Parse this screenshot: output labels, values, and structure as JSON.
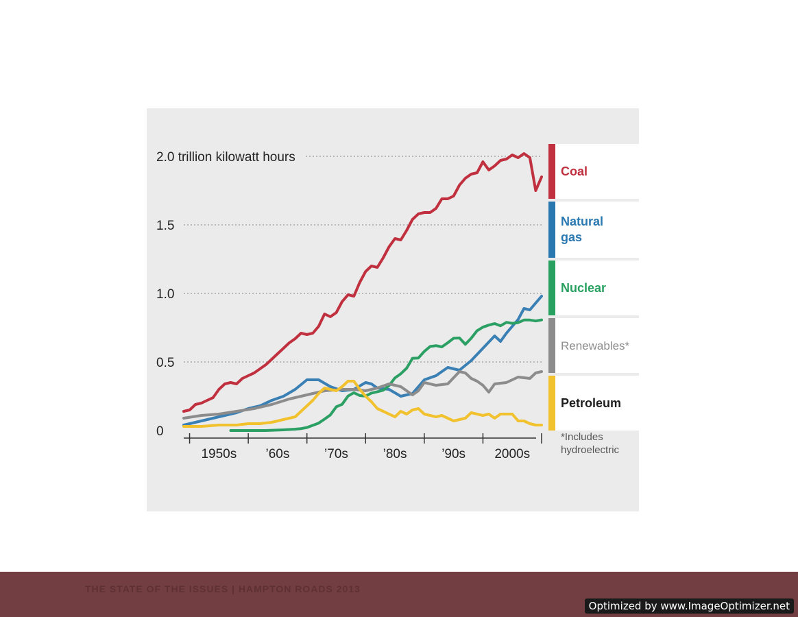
{
  "chart_data": {
    "type": "line",
    "ylabel_top": "2.0 trillion kilowatt hours",
    "y_ticks": [
      "0",
      "0.5",
      "1.0",
      "1.5"
    ],
    "x_ticks": [
      "1950s",
      "’60s",
      "’70s",
      "’80s",
      "’90s",
      "2000s"
    ],
    "ylim": [
      0,
      2.0
    ],
    "xlim": [
      1949,
      2010
    ],
    "grid": "horizontal dotted",
    "legend_position": "right",
    "footnote": "*Includes hydroelectric",
    "series": [
      {
        "name": "Coal",
        "color": "#c0303f",
        "x": [
          1949,
          1950,
          1951,
          1952,
          1953,
          1954,
          1955,
          1956,
          1957,
          1958,
          1959,
          1960,
          1961,
          1962,
          1963,
          1964,
          1965,
          1966,
          1967,
          1968,
          1969,
          1970,
          1971,
          1972,
          1973,
          1974,
          1975,
          1976,
          1977,
          1978,
          1979,
          1980,
          1981,
          1982,
          1983,
          1984,
          1985,
          1986,
          1987,
          1988,
          1989,
          1990,
          1991,
          1992,
          1993,
          1994,
          1995,
          1996,
          1997,
          1998,
          1999,
          2000,
          2001,
          2002,
          2003,
          2004,
          2005,
          2006,
          2007,
          2008,
          2009,
          2010
        ],
        "values": [
          0.14,
          0.15,
          0.19,
          0.2,
          0.22,
          0.24,
          0.3,
          0.34,
          0.35,
          0.34,
          0.38,
          0.4,
          0.42,
          0.45,
          0.48,
          0.52,
          0.56,
          0.6,
          0.64,
          0.67,
          0.71,
          0.7,
          0.71,
          0.76,
          0.85,
          0.83,
          0.86,
          0.94,
          0.99,
          0.98,
          1.08,
          1.16,
          1.2,
          1.19,
          1.26,
          1.34,
          1.4,
          1.39,
          1.46,
          1.54,
          1.58,
          1.59,
          1.59,
          1.62,
          1.69,
          1.69,
          1.71,
          1.79,
          1.84,
          1.87,
          1.88,
          1.96,
          1.9,
          1.93,
          1.97,
          1.98,
          2.01,
          1.99,
          2.02,
          1.99,
          1.75,
          1.85
        ]
      },
      {
        "name": "Natural gas",
        "color": "#3a80b5",
        "x": [
          1949,
          1950,
          1952,
          1954,
          1956,
          1958,
          1960,
          1962,
          1964,
          1966,
          1968,
          1970,
          1972,
          1974,
          1976,
          1978,
          1980,
          1981,
          1982,
          1984,
          1986,
          1988,
          1990,
          1992,
          1994,
          1996,
          1998,
          2000,
          2002,
          2003,
          2004,
          2006,
          2007,
          2008,
          2009,
          2010
        ],
        "values": [
          0.04,
          0.05,
          0.07,
          0.09,
          0.11,
          0.13,
          0.16,
          0.18,
          0.22,
          0.25,
          0.3,
          0.37,
          0.37,
          0.32,
          0.29,
          0.3,
          0.35,
          0.34,
          0.31,
          0.3,
          0.25,
          0.27,
          0.37,
          0.4,
          0.46,
          0.44,
          0.51,
          0.6,
          0.69,
          0.65,
          0.71,
          0.81,
          0.89,
          0.88,
          0.93,
          0.98
        ]
      },
      {
        "name": "Nuclear",
        "color": "#2ca064",
        "x": [
          1957,
          1960,
          1963,
          1966,
          1968,
          1969,
          1970,
          1971,
          1972,
          1973,
          1974,
          1975,
          1976,
          1977,
          1978,
          1979,
          1980,
          1981,
          1982,
          1983,
          1984,
          1985,
          1986,
          1987,
          1988,
          1989,
          1990,
          1991,
          1992,
          1993,
          1994,
          1995,
          1996,
          1997,
          1998,
          1999,
          2000,
          2001,
          2002,
          2003,
          2004,
          2005,
          2006,
          2007,
          2008,
          2009,
          2010
        ],
        "values": [
          0.0,
          0.0,
          0.0,
          0.005,
          0.01,
          0.014,
          0.022,
          0.038,
          0.054,
          0.083,
          0.114,
          0.173,
          0.191,
          0.251,
          0.276,
          0.255,
          0.251,
          0.273,
          0.283,
          0.294,
          0.328,
          0.384,
          0.414,
          0.455,
          0.527,
          0.529,
          0.577,
          0.613,
          0.619,
          0.61,
          0.64,
          0.673,
          0.675,
          0.629,
          0.673,
          0.728,
          0.754,
          0.769,
          0.78,
          0.764,
          0.789,
          0.782,
          0.787,
          0.806,
          0.806,
          0.799,
          0.807
        ]
      },
      {
        "name": "Renewables*",
        "color": "#8c8c8c",
        "x": [
          1949,
          1952,
          1955,
          1958,
          1961,
          1964,
          1967,
          1970,
          1973,
          1976,
          1978,
          1980,
          1982,
          1984,
          1986,
          1988,
          1989,
          1990,
          1992,
          1994,
          1996,
          1997,
          1998,
          1999,
          2000,
          2001,
          2002,
          2004,
          2006,
          2008,
          2009,
          2010
        ],
        "values": [
          0.09,
          0.11,
          0.12,
          0.14,
          0.16,
          0.19,
          0.23,
          0.26,
          0.29,
          0.3,
          0.3,
          0.29,
          0.31,
          0.34,
          0.32,
          0.26,
          0.29,
          0.35,
          0.33,
          0.34,
          0.43,
          0.42,
          0.38,
          0.36,
          0.33,
          0.28,
          0.34,
          0.35,
          0.39,
          0.38,
          0.42,
          0.43
        ]
      },
      {
        "name": "Petroleum",
        "color": "#f2c12e",
        "x": [
          1949,
          1952,
          1955,
          1958,
          1960,
          1962,
          1964,
          1966,
          1968,
          1970,
          1971,
          1972,
          1973,
          1974,
          1975,
          1976,
          1977,
          1978,
          1979,
          1980,
          1981,
          1982,
          1983,
          1984,
          1985,
          1986,
          1987,
          1988,
          1989,
          1990,
          1991,
          1992,
          1993,
          1994,
          1995,
          1996,
          1997,
          1998,
          1999,
          2000,
          2001,
          2002,
          2003,
          2004,
          2005,
          2006,
          2007,
          2008,
          2009,
          2010
        ],
        "values": [
          0.03,
          0.03,
          0.04,
          0.04,
          0.05,
          0.05,
          0.06,
          0.08,
          0.1,
          0.18,
          0.22,
          0.27,
          0.31,
          0.3,
          0.29,
          0.32,
          0.36,
          0.36,
          0.3,
          0.25,
          0.21,
          0.16,
          0.14,
          0.12,
          0.1,
          0.14,
          0.12,
          0.15,
          0.16,
          0.12,
          0.11,
          0.1,
          0.11,
          0.09,
          0.07,
          0.08,
          0.09,
          0.13,
          0.12,
          0.11,
          0.12,
          0.09,
          0.12,
          0.12,
          0.12,
          0.07,
          0.07,
          0.05,
          0.04,
          0.04
        ]
      }
    ]
  },
  "legend": [
    {
      "label": "Coal",
      "color": "#c0303f"
    },
    {
      "label": "Natural gas",
      "color": "#2a78b0"
    },
    {
      "label": "Nuclear",
      "color": "#27a060"
    },
    {
      "label": "Renewables*",
      "color": "#8c8c8c"
    },
    {
      "label": "Petroleum",
      "color": "#1e1e1e",
      "bar_color": "#f2c12e"
    }
  ],
  "footnote_lines": [
    "*Includes",
    "hydroelectric"
  ],
  "footer": {
    "text": "THE STATE OF THE ISSUES  |  HAMPTON ROADS 2013",
    "band_color": "#733e42"
  },
  "watermark": "Optimized by www.ImageOptimizer.net"
}
